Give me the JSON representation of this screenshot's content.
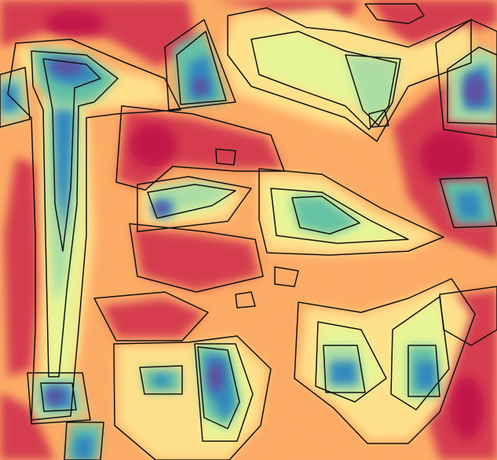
{
  "palette": {
    "low": "#5e4fa2",
    "low_mid": "#3288bd",
    "teal": "#66c2a5",
    "light_green": "#abdda4",
    "pale": "#e6f598",
    "cream": "#fee08b",
    "orange": "#fdae61",
    "red_orange": "#f46d43",
    "red": "#d53e4f",
    "crimson": "#c2184a",
    "contour_line": "#111111"
  }
}
